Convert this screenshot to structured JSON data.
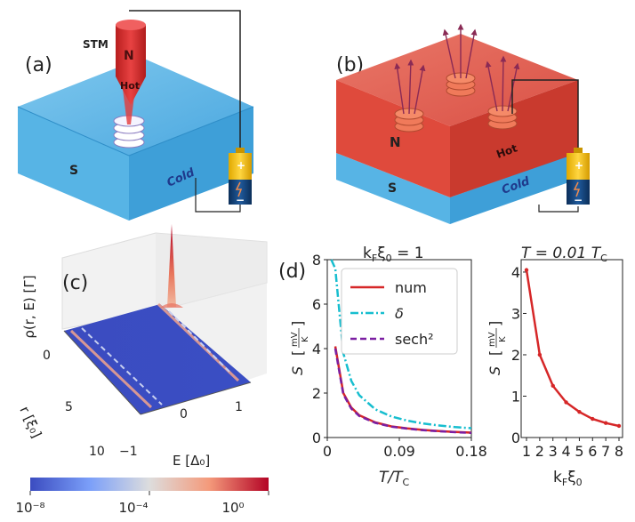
{
  "panel_a": {
    "label": "(a)",
    "stm_label": "STM",
    "tip_n": "N",
    "tip_hot": "Hot",
    "slab_s": "S",
    "slab_cold": "Cold"
  },
  "panel_b": {
    "label": "(b)",
    "layer_n": "N",
    "layer_hot": "Hot",
    "layer_s": "S",
    "layer_cold": "Cold"
  },
  "battery": {
    "plus": "+",
    "minus": "−"
  },
  "panel_c": {
    "label": "(c)",
    "zlabel": "ρ(r, E) [Γ]",
    "ylabel": "r [ξ₀]",
    "xlabel": "E [Δ₀]",
    "ztick": "0",
    "yticks": [
      "0",
      "5",
      "10"
    ],
    "xticks": [
      "−1",
      "0",
      "1"
    ],
    "colorbar_ticks": [
      "10⁻⁸",
      "10⁻⁴",
      "10⁰"
    ],
    "colors": {
      "low": "#3b4cc0",
      "mid": "#dddddd",
      "high": "#b40426"
    }
  },
  "chart_data": [
    {
      "type": "line",
      "panel": "(d)",
      "title": "kFξ0 = 1",
      "xlabel": "T/TC",
      "ylabel": "S [mV/K]",
      "xlim": [
        0,
        0.18
      ],
      "ylim": [
        0,
        8
      ],
      "xticks": [
        "0",
        "0.09",
        "0.18"
      ],
      "yticks": [
        "0",
        "2",
        "4",
        "6",
        "8"
      ],
      "legend_position": "top-right",
      "series": [
        {
          "name": "num",
          "style": "solid",
          "color": "#d62728",
          "x": [
            0.01,
            0.02,
            0.03,
            0.04,
            0.06,
            0.08,
            0.1,
            0.12,
            0.14,
            0.16,
            0.18
          ],
          "y": [
            4.1,
            2.0,
            1.35,
            1.0,
            0.68,
            0.5,
            0.41,
            0.34,
            0.29,
            0.25,
            0.22
          ]
        },
        {
          "name": "δ",
          "style": "dashdot",
          "color": "#17becf",
          "x": [
            0.005,
            0.01,
            0.02,
            0.03,
            0.04,
            0.06,
            0.08,
            0.1,
            0.12,
            0.14,
            0.16,
            0.18
          ],
          "y": [
            8.0,
            7.6,
            3.8,
            2.55,
            1.9,
            1.27,
            0.95,
            0.76,
            0.63,
            0.54,
            0.47,
            0.42
          ]
        },
        {
          "name": "sech²",
          "style": "dashed",
          "color": "#7b1fa2",
          "x": [
            0.01,
            0.02,
            0.03,
            0.04,
            0.06,
            0.08,
            0.1,
            0.12,
            0.14,
            0.16,
            0.18
          ],
          "y": [
            4.0,
            1.95,
            1.3,
            0.97,
            0.66,
            0.49,
            0.4,
            0.33,
            0.28,
            0.24,
            0.21
          ]
        }
      ]
    },
    {
      "type": "line",
      "title": "T = 0.01 TC",
      "xlabel": "kFξ0",
      "ylabel": "S [mV/K]",
      "xlim": [
        1,
        8
      ],
      "ylim": [
        0,
        4.3
      ],
      "xticks": [
        "1",
        "2",
        "3",
        "4",
        "5",
        "6",
        "7",
        "8"
      ],
      "yticks": [
        "0",
        "1",
        "2",
        "3",
        "4"
      ],
      "series": [
        {
          "color": "#d62728",
          "x": [
            1,
            2,
            3,
            4,
            5,
            6,
            7,
            8
          ],
          "y": [
            4.05,
            2.0,
            1.25,
            0.85,
            0.62,
            0.45,
            0.35,
            0.28
          ]
        }
      ]
    }
  ],
  "display": {
    "d_label": "(d)",
    "d_title_left": "k",
    "d_title_sub": "F",
    "d_title_rest": "ξ",
    "d_title_sub2": "0",
    "d_title_end": " = 1",
    "d2_title": "T = 0.01 T",
    "d2_title_sub": "C",
    "xlabel_left": "T/T",
    "xlabel_left_sub": "C",
    "xlabel_right": "k",
    "xlabel_right_sub": "F",
    "xlabel_right_rest": "ξ",
    "xlabel_right_sub2": "0",
    "ylabel_s": "S",
    "ylabel_num": "mV",
    "ylabel_den": "K"
  }
}
